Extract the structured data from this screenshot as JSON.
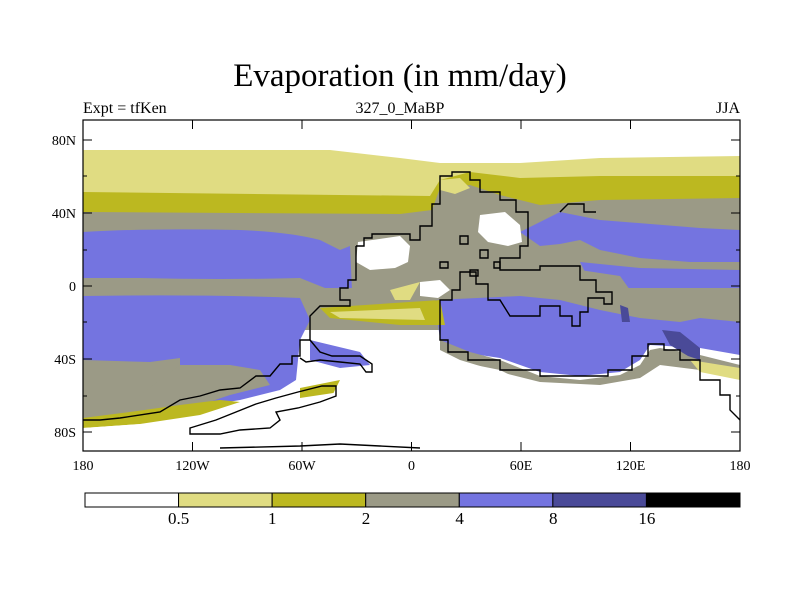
{
  "title": "Evaporation (in mm/day)",
  "left_string": "Expt = tfKen",
  "center_string": "327_0_MaBP",
  "right_string": "JJA",
  "lat_ticks": [
    "80N",
    "40N",
    "0",
    "40S",
    "80S"
  ],
  "lon_ticks": [
    "180",
    "120W",
    "60W",
    "0",
    "60E",
    "120E",
    "180"
  ],
  "colorbar": {
    "colors": [
      "#ffffff",
      "#e0dc82",
      "#bcb820",
      "#9b9a86",
      "#7474e0",
      "#4a4a98",
      "#000000"
    ],
    "labels": [
      "0.5",
      "1",
      "2",
      "4",
      "8",
      "16"
    ]
  },
  "colors": {
    "bg_white": "#ffffff",
    "light_yellow": "#e0dc82",
    "olive": "#bcb820",
    "gray": "#9b9a86",
    "blue": "#7474e0",
    "dark_blue": "#4a4a98",
    "coast": "#000000"
  }
}
